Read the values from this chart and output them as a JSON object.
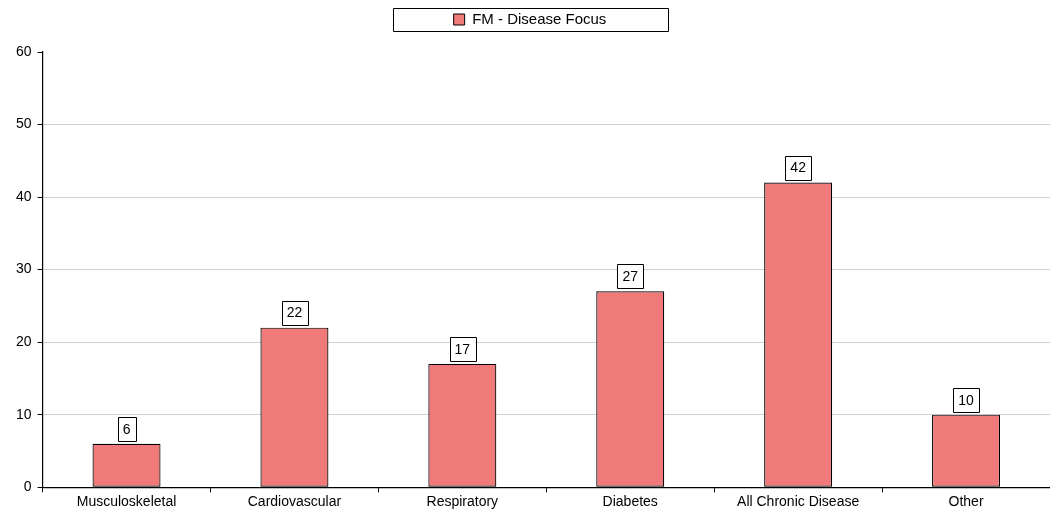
{
  "chart_data": {
    "type": "bar",
    "categories": [
      "Musculoskeletal",
      "Cardiovascular",
      "Respiratory",
      "Diabetes",
      "All Chronic Disease",
      "Other"
    ],
    "series": [
      {
        "name": "FM - Disease Focus",
        "color": "#f07a7a",
        "values": [
          6,
          22,
          17,
          27,
          42,
          10
        ]
      }
    ],
    "ylim": [
      0,
      60
    ],
    "yticks": [
      0,
      10,
      20,
      30,
      40,
      50,
      60
    ],
    "grid": "y",
    "legend": "top",
    "data_labels": true
  }
}
